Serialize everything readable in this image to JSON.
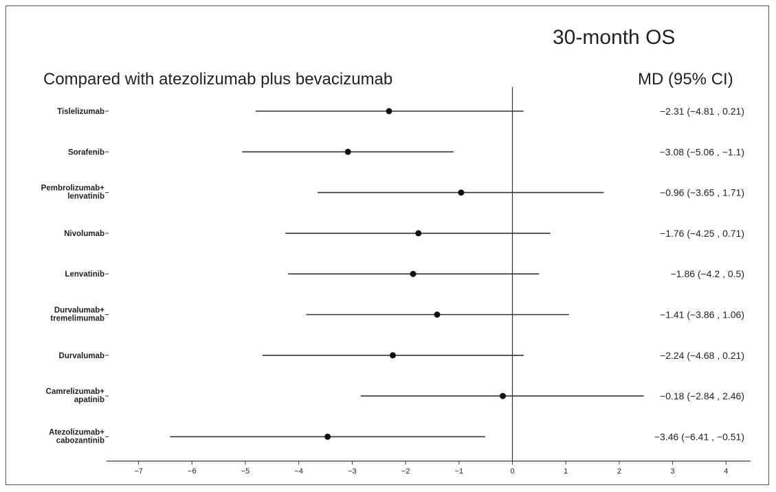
{
  "chart_data": {
    "type": "forest",
    "title": "30-month OS",
    "subtitle": "Compared with atezolizumab plus bevacizumab",
    "estimate_header": "MD (95% CI)",
    "xlim": [
      -7.6,
      4.45
    ],
    "xticks": [
      "−7",
      "−6",
      "−5",
      "−4",
      "−3",
      "−2",
      "−1",
      "0",
      "1",
      "2",
      "3",
      "4"
    ],
    "xtick_values": [
      -7,
      -6,
      -5,
      -4,
      -3,
      -2,
      -1,
      0,
      1,
      2,
      3,
      4
    ],
    "reference_line": 0,
    "rows": [
      {
        "label": [
          "Tislelizumab"
        ],
        "md": -2.31,
        "lower": -4.81,
        "upper": 0.21,
        "text": "−2.31 (−4.81 , 0.21)"
      },
      {
        "label": [
          "Sorafenib"
        ],
        "md": -3.08,
        "lower": -5.06,
        "upper": -1.1,
        "text": "−3.08 (−5.06 , −1.1)"
      },
      {
        "label": [
          "Pembrolizumab+",
          "lenvatinib"
        ],
        "md": -0.96,
        "lower": -3.65,
        "upper": 1.71,
        "text": "−0.96 (−3.65 , 1.71)"
      },
      {
        "label": [
          "Nivolumab"
        ],
        "md": -1.76,
        "lower": -4.25,
        "upper": 0.71,
        "text": "−1.76 (−4.25 , 0.71)"
      },
      {
        "label": [
          "Lenvatinib"
        ],
        "md": -1.86,
        "lower": -4.2,
        "upper": 0.5,
        "text": "−1.86 (−4.2 , 0.5)"
      },
      {
        "label": [
          "Durvalumab+",
          "tremelimumab"
        ],
        "md": -1.41,
        "lower": -3.86,
        "upper": 1.06,
        "text": "−1.41 (−3.86 , 1.06)"
      },
      {
        "label": [
          "Durvalumab"
        ],
        "md": -2.24,
        "lower": -4.68,
        "upper": 0.21,
        "text": "−2.24 (−4.68 , 0.21)"
      },
      {
        "label": [
          "Camrelizumab+",
          "apatinib"
        ],
        "md": -0.18,
        "lower": -2.84,
        "upper": 2.46,
        "text": "−0.18 (−2.84 , 2.46)"
      },
      {
        "label": [
          "Atezolizumab+",
          "cabozantinib"
        ],
        "md": -3.46,
        "lower": -6.41,
        "upper": -0.51,
        "text": "−3.46 (−6.41 , −0.51)"
      }
    ],
    "colors": {
      "line": "#333333",
      "point": "#111111",
      "text": "#222222"
    }
  }
}
